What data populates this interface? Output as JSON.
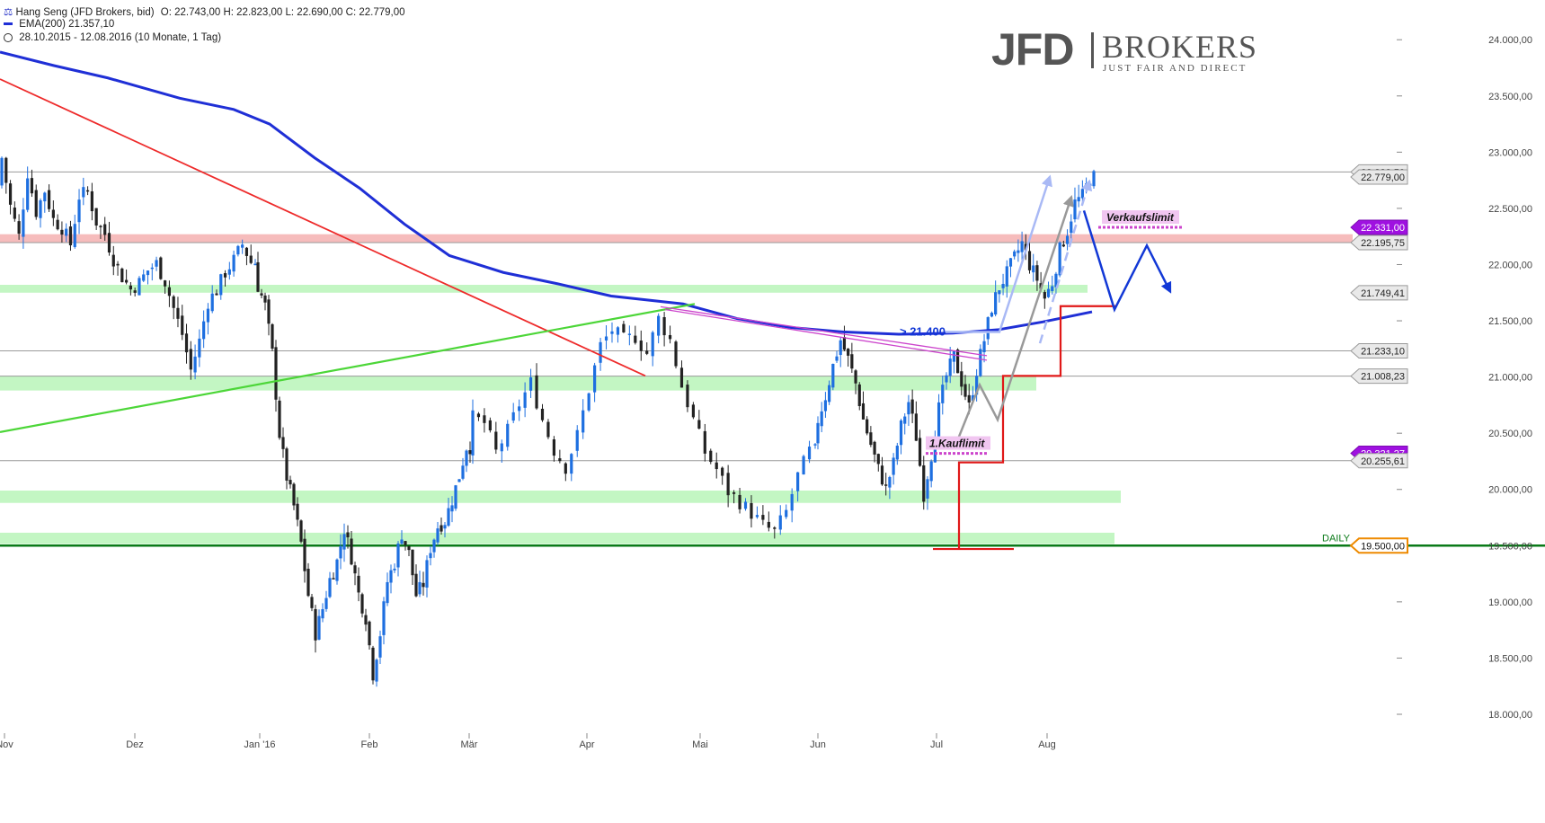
{
  "header": {
    "symbol_line": "Hang Seng (JFD Brokers, bid)",
    "ohlc": "O: 22.743,00  H: 22.823,00  L: 22.690,00  C: 22.779,00",
    "ema_line": "EMA(200)  21.357,10",
    "range_line": "28.10.2015 - 12.08.2016 (10 Monate, 1 Tag)"
  },
  "logo": {
    "brand": "JFD",
    "brokers": "BROKERS",
    "tagline": "JUST FAIR AND DIRECT"
  },
  "timeframe_label": "DAILY",
  "colors": {
    "up": "#1e6fe0",
    "down": "#222222",
    "ema": "#1f2fd6",
    "downtrend": "#ee2b2b",
    "uptrend": "#4cd638",
    "resist_zone": "#f5b0b0",
    "support_zone": "#b8f5b8",
    "baseline": "#0a7a18",
    "plan": "#e01818",
    "scenario": "#1238d6",
    "purple": "#cc44cc"
  },
  "chart_data": {
    "type": "candlestick",
    "period": "daily",
    "x_ticks": [
      "Nov",
      "Dez",
      "Jan '16",
      "Feb",
      "Mär",
      "Apr",
      "Mai",
      "Jun",
      "Jul",
      "Aug"
    ],
    "y_ticks": [
      "18.000,00",
      "18.500,00",
      "19.000,00",
      "19.500,00",
      "20.000,00",
      "20.500,00",
      "21.000,00",
      "21.500,00",
      "22.000,00",
      "22.500,00",
      "23.000,00",
      "23.500,00",
      "24.000,00"
    ],
    "ylim": [
      17950,
      24200
    ],
    "price_tags": [
      {
        "value": 22823.5,
        "label": "22.823,50",
        "style": "grey"
      },
      {
        "value": 22779,
        "label": "22.779,00",
        "style": "grey"
      },
      {
        "value": 22331,
        "label": "22.331,00",
        "style": "purple"
      },
      {
        "value": 22195.75,
        "label": "22.195,75",
        "style": "grey"
      },
      {
        "value": 21749.41,
        "label": "21.749,41",
        "style": "grey"
      },
      {
        "value": 21233.1,
        "label": "21.233,10",
        "style": "grey"
      },
      {
        "value": 21008.23,
        "label": "21.008,23",
        "style": "grey"
      },
      {
        "value": 20321.27,
        "label": "20.321,27",
        "style": "purple"
      },
      {
        "value": 20255.61,
        "label": "20.255,61",
        "style": "grey"
      },
      {
        "value": 19500,
        "label": "19.500,00",
        "style": "orange"
      }
    ],
    "horizontal_lines": [
      22823.5,
      22195.75,
      21233.1,
      21008.23,
      20255.61
    ],
    "zones": [
      {
        "kind": "resistance",
        "from": 22195,
        "to": 22270
      },
      {
        "kind": "support",
        "from": 21750,
        "to": 21820
      },
      {
        "kind": "support",
        "from": 20880,
        "to": 21010
      },
      {
        "kind": "support",
        "from": 19880,
        "to": 19990
      },
      {
        "kind": "support",
        "from": 19515,
        "to": 19615
      }
    ],
    "annotations": [
      {
        "text": "Verkaufslimit",
        "value": 22331
      },
      {
        "text": "1.Kauflimit",
        "value": 20321
      },
      {
        "text": "> 21.400",
        "value": 21400
      }
    ],
    "ohlc_anchor_close": [
      [
        22950,
        22520,
        22250,
        22820,
        22470,
        22660,
        22400,
        22330,
        22180,
        22610,
        22650,
        22380,
        22270,
        22050,
        21890,
        21780,
        21840,
        21950,
        22010,
        21850,
        21610,
        21380,
        21060,
        21320,
        21670,
        21770,
        21930,
        22040,
        22180,
        22020
      ],
      [
        21810,
        21630,
        21210,
        20490,
        20110,
        19850,
        19520,
        19060,
        18720,
        18940,
        19200,
        19360,
        19650,
        19400,
        19070,
        18860,
        18360,
        18720,
        19180,
        19350,
        19610,
        19430,
        19060,
        19160,
        19480,
        19670,
        19720,
        19910,
        20120,
        20380
      ],
      [
        20640,
        20590,
        20330,
        20520,
        20760,
        20950,
        20620,
        20350,
        20200,
        20480,
        20890,
        21280,
        21420,
        21330,
        21360,
        21210,
        21520,
        21330,
        20920,
        20620,
        20330,
        20180,
        19980,
        19890,
        19790,
        19680,
        19620,
        19800,
        20120,
        20340
      ],
      [
        20620,
        20830,
        21100,
        21330,
        21160,
        20940,
        20620,
        20400,
        20180,
        20010,
        20230,
        20560,
        20780,
        20470,
        19960,
        20310,
        20720,
        21010,
        21180,
        20960,
        20730,
        21060,
        21330,
        21620,
        21800,
        21920,
        22060,
        22190,
        22000,
        21870,
        21700,
        21840,
        22130,
        22300,
        22550,
        22610,
        22779
      ]
    ]
  }
}
